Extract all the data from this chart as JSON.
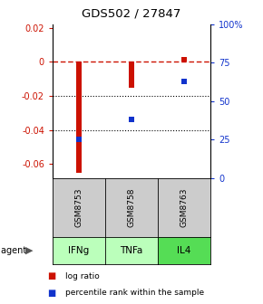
{
  "title": "GDS502 / 27847",
  "samples": [
    "GSM8753",
    "GSM8758",
    "GSM8763"
  ],
  "agents": [
    "IFNg",
    "TNFa",
    "IL4"
  ],
  "log_ratios": [
    -0.065,
    -0.015,
    0.003
  ],
  "percentile_ranks": [
    0.25,
    0.38,
    0.63
  ],
  "ylim_left": [
    -0.068,
    0.022
  ],
  "ylim_right": [
    0.0,
    1.0
  ],
  "yticks_left": [
    0.02,
    0,
    -0.02,
    -0.04,
    -0.06
  ],
  "ytick_labels_left": [
    "0.02",
    "0",
    "-0.02",
    "-0.04",
    "-0.06"
  ],
  "yticks_right": [
    1.0,
    0.75,
    0.5,
    0.25,
    0.0
  ],
  "ytick_labels_right": [
    "100%",
    "75",
    "50",
    "25",
    "0"
  ],
  "bar_color": "#cc1100",
  "dot_color": "#1133cc",
  "agent_colors": [
    "#bbffbb",
    "#bbffbb",
    "#55dd55"
  ],
  "sample_bg_color": "#cccccc",
  "legend_bar_label": "log ratio",
  "legend_dot_label": "percentile rank within the sample",
  "zero_line_color": "#cc1100",
  "grid_color": "#000000",
  "bar_width": 0.12
}
